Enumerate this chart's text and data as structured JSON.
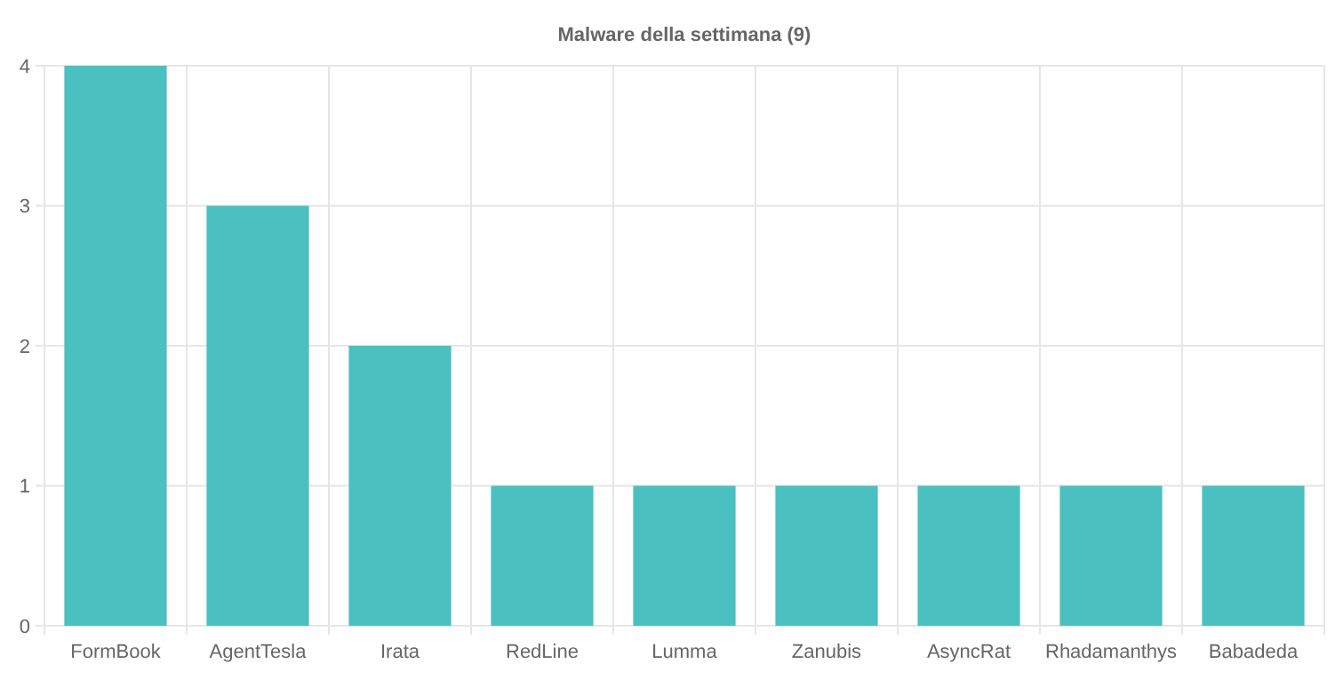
{
  "chart_data": {
    "type": "bar",
    "title": "Malware della settimana (9)",
    "categories": [
      "FormBook",
      "AgentTesla",
      "Irata",
      "RedLine",
      "Lumma",
      "Zanubis",
      "AsyncRat",
      "Rhadamanthys",
      "Babadeda"
    ],
    "values": [
      4,
      3,
      2,
      1,
      1,
      1,
      1,
      1,
      1
    ],
    "color": "#4bc0c0",
    "ylim": [
      0,
      4
    ],
    "yticks": [
      0,
      1,
      2,
      3,
      4
    ],
    "grid": true
  }
}
